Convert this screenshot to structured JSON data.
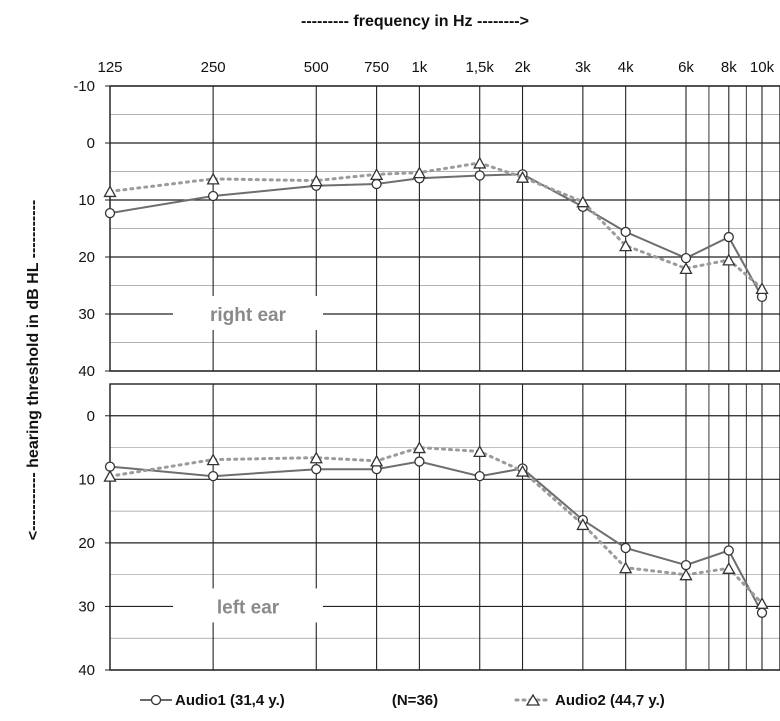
{
  "chart_data": {
    "type": "line",
    "xlabel": "--------- frequency in Hz -------->",
    "ylabel": "<----------- hearing threshold  in  dB HL -----------",
    "x_tick_labels": [
      "125",
      "250",
      "500",
      "750",
      "1k",
      "1,5k",
      "2k",
      "3k",
      "4k",
      "6k",
      "8k",
      "10k"
    ],
    "x_hz": [
      125,
      250,
      500,
      750,
      1000,
      1500,
      2000,
      3000,
      4000,
      6000,
      8000,
      10000
    ],
    "x_scale": "log",
    "y_inverted": true,
    "legend_position": "bottom",
    "grid": true,
    "series_names": [
      "Audio1 (31,4 y.)",
      "Audio2 (44,7 y.)"
    ],
    "sample_label": "(N=36)",
    "panels": [
      {
        "label": "right ear",
        "ylim": [
          -10,
          40
        ],
        "y_tick_labels": [
          "-10",
          "0",
          "10",
          "20",
          "30",
          "40"
        ],
        "series": [
          {
            "name": "Audio1 (31,4 y.)",
            "marker": "circle",
            "line": "solid",
            "color": "#6e6e6e",
            "values": [
              12.3,
              9.3,
              7.5,
              7.2,
              6.2,
              5.7,
              5.5,
              11.2,
              15.6,
              20.2,
              16.5,
              27.0
            ]
          },
          {
            "name": "Audio2 (44,7 y.)",
            "marker": "triangle",
            "line": "dotted",
            "color": "#9b9b9b",
            "values": [
              8.5,
              6.3,
              6.6,
              5.5,
              5.2,
              3.5,
              6.0,
              10.3,
              18.0,
              22.0,
              20.5,
              25.5
            ]
          }
        ]
      },
      {
        "label": "left ear",
        "ylim": [
          -5,
          40
        ],
        "y_tick_labels": [
          "0",
          "10",
          "20",
          "30",
          "40"
        ],
        "series": [
          {
            "name": "Audio1 (31,4 y.)",
            "marker": "circle",
            "line": "solid",
            "color": "#6e6e6e",
            "values": [
              8.0,
              9.5,
              8.4,
              8.4,
              7.2,
              9.5,
              8.3,
              16.4,
              20.8,
              23.5,
              21.2,
              31.0
            ]
          },
          {
            "name": "Audio2 (44,7 y.)",
            "marker": "triangle",
            "line": "dotted",
            "color": "#9b9b9b",
            "values": [
              9.5,
              6.9,
              6.6,
              7.1,
              5.0,
              5.6,
              8.7,
              17.1,
              23.9,
              25.0,
              24.0,
              29.5
            ]
          }
        ]
      }
    ]
  }
}
